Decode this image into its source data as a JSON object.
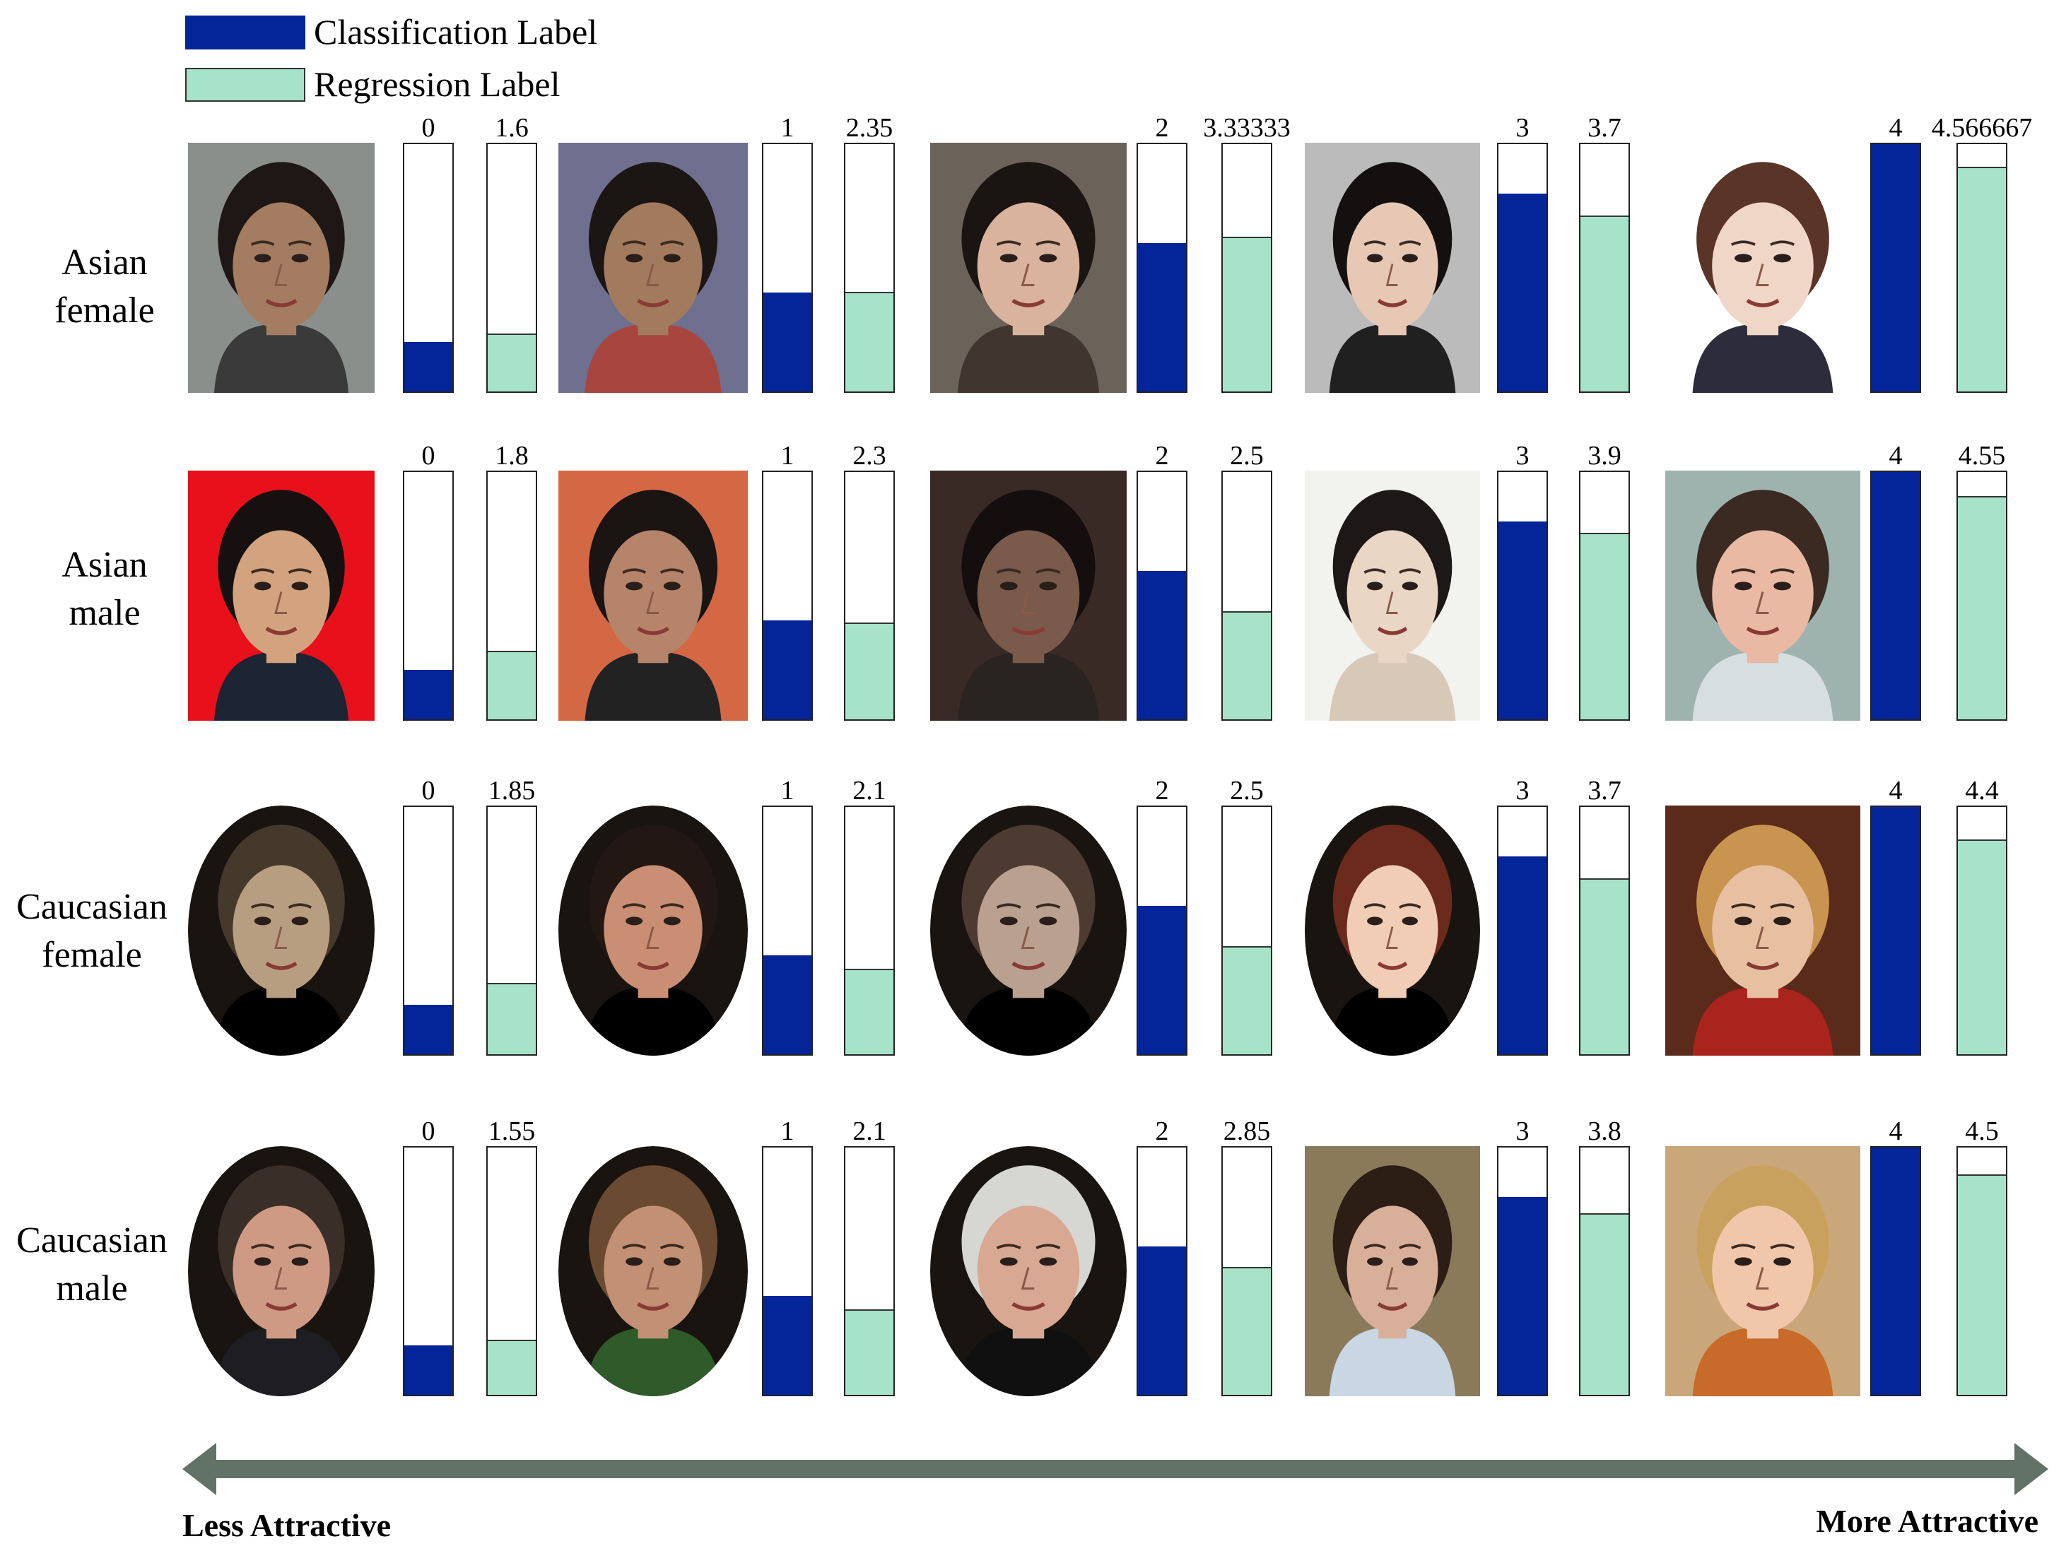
{
  "legend": {
    "classification": {
      "label": "Classification Label",
      "color": "#04249a"
    },
    "regression": {
      "label": "Regression Label",
      "color": "#a6e3c9"
    }
  },
  "scale": {
    "classification_max": 5,
    "regression_max": 5
  },
  "rows": [
    {
      "label_line1": "Asian",
      "label_line2": "female",
      "shape": "rect",
      "samples": [
        {
          "class_label": "0",
          "class_value": 0,
          "reg_label": "1.6",
          "reg_value": 1.6,
          "skin": "#a37c62",
          "hair": "#1e1715",
          "bg": "#8a8f8c",
          "cloth": "#3a3a3a"
        },
        {
          "class_label": "1",
          "class_value": 1,
          "reg_label": "2.35",
          "reg_value": 2.35,
          "skin": "#a27a5d",
          "hair": "#1b1513",
          "bg": "#6f6f8f",
          "cloth": "#a8453f"
        },
        {
          "class_label": "2",
          "class_value": 2,
          "reg_label": "3.33333",
          "reg_value": 3.33333,
          "skin": "#d9b39d",
          "hair": "#1a1412",
          "bg": "#6b625a",
          "cloth": "#40362f"
        },
        {
          "class_label": "3",
          "class_value": 3,
          "reg_label": "3.7",
          "reg_value": 3.7,
          "skin": "#e7c8b4",
          "hair": "#141010",
          "bg": "#bbbbbb",
          "cloth": "#202020"
        },
        {
          "class_label": "4",
          "class_value": 4,
          "reg_label": "4.566667",
          "reg_value": 4.566667,
          "skin": "#f0d6c7",
          "hair": "#5a3426",
          "bg": "#ffffff",
          "cloth": "#2c2c3a"
        }
      ]
    },
    {
      "label_line1": "Asian",
      "label_line2": "male",
      "shape": "rect",
      "samples": [
        {
          "class_label": "0",
          "class_value": 0,
          "reg_label": "1.8",
          "reg_value": 1.8,
          "skin": "#d3a27f",
          "hair": "#161010",
          "bg": "#e8101a",
          "cloth": "#1d2433"
        },
        {
          "class_label": "1",
          "class_value": 1,
          "reg_label": "2.3",
          "reg_value": 2.3,
          "skin": "#b5846a",
          "hair": "#1a1412",
          "bg": "#d46845",
          "cloth": "#222222"
        },
        {
          "class_label": "2",
          "class_value": 2,
          "reg_label": "2.5",
          "reg_value": 2.5,
          "skin": "#7a5a4a",
          "hair": "#140f0e",
          "bg": "#3a2a26",
          "cloth": "#2a2421"
        },
        {
          "class_label": "3",
          "class_value": 3,
          "reg_label": "3.9",
          "reg_value": 3.9,
          "skin": "#e9d6c4",
          "hair": "#1c1817",
          "bg": "#f2f2ee",
          "cloth": "#d8c8b8"
        },
        {
          "class_label": "4",
          "class_value": 4,
          "reg_label": "4.55",
          "reg_value": 4.55,
          "skin": "#e9b9a4",
          "hair": "#3a2a22",
          "bg": "#9fb3ae",
          "cloth": "#d7dee0"
        }
      ]
    },
    {
      "label_line1": "Caucasian",
      "label_line2": "female",
      "shape": "oval",
      "samples": [
        {
          "class_label": "0",
          "class_value": 0,
          "reg_label": "1.85",
          "reg_value": 1.85,
          "skin": "#b89e80",
          "hair": "#45392c",
          "bg": "#000000",
          "cloth": "#000000"
        },
        {
          "class_label": "1",
          "class_value": 1,
          "reg_label": "2.1",
          "reg_value": 2.1,
          "skin": "#c98e73",
          "hair": "#231713",
          "bg": "#000000",
          "cloth": "#000000"
        },
        {
          "class_label": "2",
          "class_value": 2,
          "reg_label": "2.5",
          "reg_value": 2.5,
          "skin": "#b9a08f",
          "hair": "#4d3a30",
          "bg": "#000000",
          "cloth": "#000000"
        },
        {
          "class_label": "3",
          "class_value": 3,
          "reg_label": "3.7",
          "reg_value": 3.7,
          "skin": "#f1cdb6",
          "hair": "#6b2a1c",
          "bg": "#000000",
          "cloth": "#000000"
        },
        {
          "class_label": "4",
          "class_value": 4,
          "reg_label": "4.4",
          "reg_value": 4.4,
          "skin": "#e7c0a2",
          "hair": "#c9944f",
          "bg": "#5a2a1a",
          "cloth": "#a8241d"
        }
      ]
    },
    {
      "label_line1": "Caucasian",
      "label_line2": "male",
      "shape": "oval",
      "samples": [
        {
          "class_label": "0",
          "class_value": 0,
          "reg_label": "1.55",
          "reg_value": 1.55,
          "skin": "#cf9a84",
          "hair": "#3a2e28",
          "bg": "#000000",
          "cloth": "#1e1e22"
        },
        {
          "class_label": "1",
          "class_value": 1,
          "reg_label": "2.1",
          "reg_value": 2.1,
          "skin": "#c29074",
          "hair": "#6b4a32",
          "bg": "#000000",
          "cloth": "#2f5a2a"
        },
        {
          "class_label": "2",
          "class_value": 2,
          "reg_label": "2.85",
          "reg_value": 2.85,
          "skin": "#d9a892",
          "hair": "#d6d6d2",
          "bg": "#000000",
          "cloth": "#101010"
        },
        {
          "class_label": "3",
          "class_value": 3,
          "reg_label": "3.8",
          "reg_value": 3.8,
          "skin": "#d8b09a",
          "hair": "#2c1d15",
          "bg": "#8a7a5a",
          "cloth": "#c9d6e4"
        },
        {
          "class_label": "4",
          "class_value": 4,
          "reg_label": "4.5",
          "reg_value": 4.5,
          "skin": "#f1c7ab",
          "hair": "#c9a15e",
          "bg": "#caa77a",
          "cloth": "#c86a2a"
        }
      ]
    }
  ],
  "axis": {
    "left_label": "Less Attractive",
    "right_label": "More Attractive",
    "arrow_color": "#627267"
  }
}
